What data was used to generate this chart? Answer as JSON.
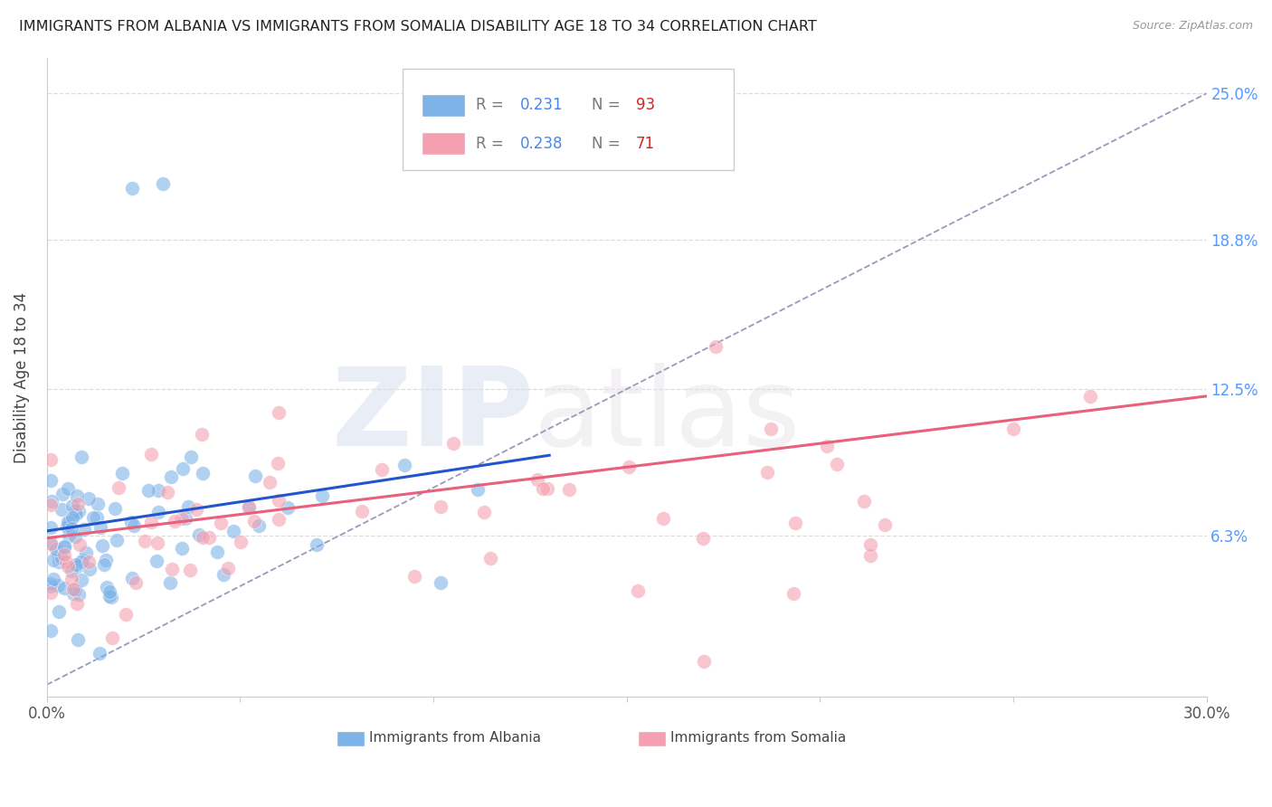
{
  "title": "IMMIGRANTS FROM ALBANIA VS IMMIGRANTS FROM SOMALIA DISABILITY AGE 18 TO 34 CORRELATION CHART",
  "source": "Source: ZipAtlas.com",
  "ylabel": "Disability Age 18 to 34",
  "xlim": [
    0.0,
    0.3
  ],
  "ylim": [
    -0.005,
    0.265
  ],
  "albania_R": 0.231,
  "albania_N": 93,
  "somalia_R": 0.238,
  "somalia_N": 71,
  "albania_color": "#7eb3e8",
  "somalia_color": "#f4a0b0",
  "albania_line_color": "#2255cc",
  "somalia_line_color": "#e8607a",
  "reference_line_color": "#9999bb",
  "watermark_zip": "ZIP",
  "watermark_atlas": "atlas",
  "background_color": "#ffffff",
  "grid_color": "#dddddd",
  "ytick_vals": [
    0.063,
    0.125,
    0.188,
    0.25
  ],
  "ytick_labels": [
    "6.3%",
    "12.5%",
    "18.8%",
    "25.0%"
  ],
  "right_label_color": "#5599ff",
  "legend_R_color": "#4488ee",
  "legend_N_color": "#dd2222"
}
